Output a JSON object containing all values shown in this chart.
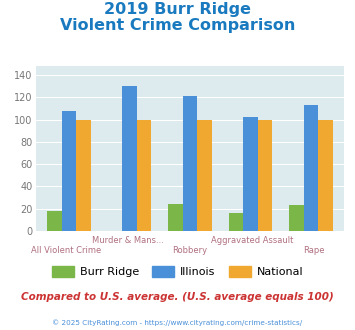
{
  "title_line1": "2019 Burr Ridge",
  "title_line2": "Violent Crime Comparison",
  "title_color": "#1a7abf",
  "cat_line1": [
    "",
    "Murder & Mans...",
    "",
    "Aggravated Assault",
    ""
  ],
  "cat_line2": [
    "All Violent Crime",
    "",
    "Robbery",
    "",
    "Rape"
  ],
  "burr_ridge": [
    18,
    0,
    24,
    16,
    23
  ],
  "illinois": [
    108,
    130,
    121,
    102,
    113
  ],
  "national": [
    100,
    100,
    100,
    100,
    100
  ],
  "burr_ridge_color": "#7ab648",
  "illinois_color": "#4a90d9",
  "national_color": "#f0a830",
  "ylim": [
    0,
    148
  ],
  "yticks": [
    0,
    20,
    40,
    60,
    80,
    100,
    120,
    140
  ],
  "plot_bg": "#ddeaee",
  "grid_color": "#ffffff",
  "footer_text": "Compared to U.S. average. (U.S. average equals 100)",
  "footer_color": "#cc3333",
  "credit_text": "© 2025 CityRating.com - https://www.cityrating.com/crime-statistics/",
  "credit_color": "#4a90d9",
  "legend_labels": [
    "Burr Ridge",
    "Illinois",
    "National"
  ]
}
